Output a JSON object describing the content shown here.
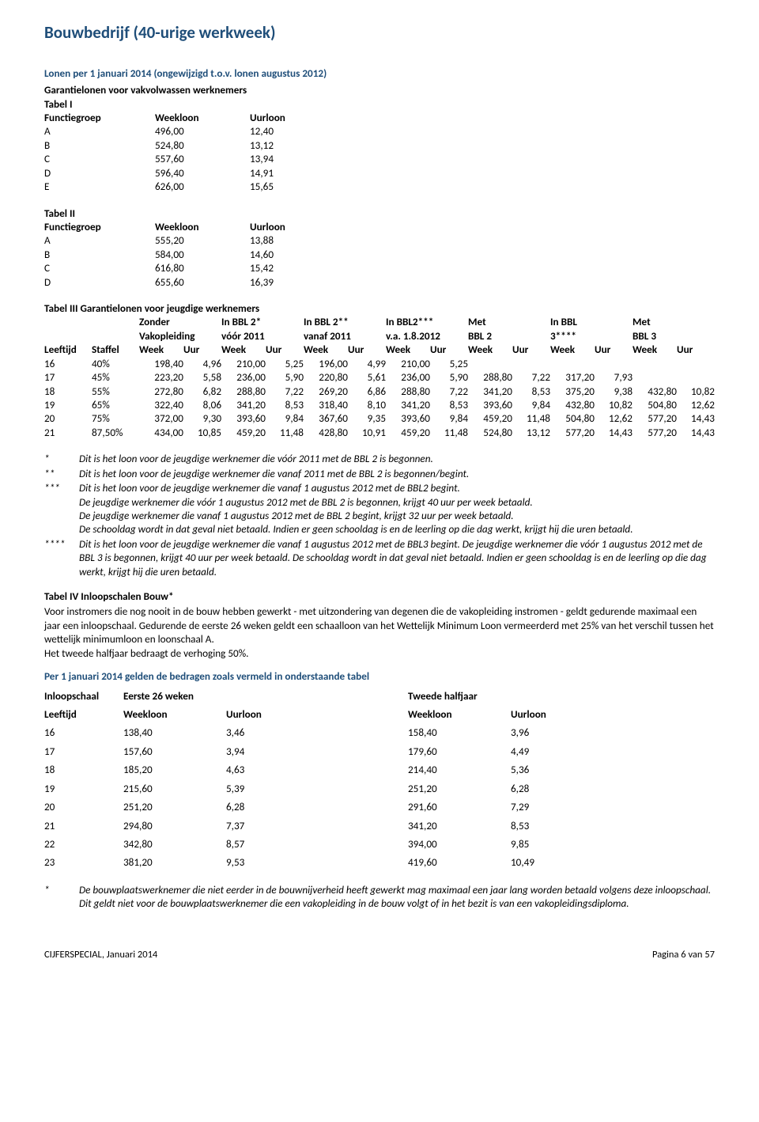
{
  "title": "Bouwbedrijf (40-urige werkweek)",
  "subtitle": "Lonen per 1 januari 2014 (ongewijzigd t.o.v. lonen augustus 2012)",
  "tabel1": {
    "heading": "Garantielonen voor vakvolwassen werknemers",
    "name": "Tabel I",
    "cols": [
      "Functiegroep",
      "Weekloon",
      "Uurloon"
    ],
    "rows": [
      [
        "A",
        "496,00",
        "12,40"
      ],
      [
        "B",
        "524,80",
        "13,12"
      ],
      [
        "C",
        "557,60",
        "13,94"
      ],
      [
        "D",
        "596,40",
        "14,91"
      ],
      [
        "E",
        "626,00",
        "15,65"
      ]
    ]
  },
  "tabel2": {
    "name": "Tabel II",
    "cols": [
      "Functiegroep",
      "Weekloon",
      "Uurloon"
    ],
    "rows": [
      [
        "A",
        "555,20",
        "13,88"
      ],
      [
        "B",
        "584,00",
        "14,60"
      ],
      [
        "C",
        "616,80",
        "15,42"
      ],
      [
        "D",
        "655,60",
        "16,39"
      ]
    ]
  },
  "tabel3": {
    "name": "Tabel III  Garantielonen voor jeugdige werknemers",
    "groupheaders": [
      "",
      "",
      "Zonder",
      "",
      "In BBL 2*",
      "",
      "In BBL 2**",
      "",
      "In BBL2***",
      "",
      "Met",
      "",
      "In BBL",
      "",
      "Met",
      ""
    ],
    "groupheaders2": [
      "",
      "",
      "Vakopleiding",
      "",
      "vóór 2011",
      "",
      "vanaf 2011",
      "",
      "v.a. 1.8.2012",
      "",
      "BBL 2",
      "",
      "3****",
      "",
      "BBL 3",
      ""
    ],
    "subheaders": [
      "Leeftijd",
      "Staffel",
      "Week",
      "Uur",
      "Week",
      "Uur",
      "Week",
      "Uur",
      "Week",
      "Uur",
      "Week",
      "Uur",
      "Week",
      "Uur",
      "Week",
      "Uur"
    ],
    "rows": [
      [
        "16",
        "40%",
        "198,40",
        "4,96",
        "210,00",
        "5,25",
        "196,00",
        "4,99",
        "210,00",
        "5,25",
        "",
        "",
        "",
        "",
        "",
        ""
      ],
      [
        "17",
        "45%",
        "223,20",
        "5,58",
        "236,00",
        "5,90",
        "220,80",
        "5,61",
        "236,00",
        "5,90",
        "288,80",
        "7,22",
        "317,20",
        "7,93",
        "",
        ""
      ],
      [
        "18",
        "55%",
        "272,80",
        "6,82",
        "288,80",
        "7,22",
        "269,20",
        "6,86",
        "288,80",
        "7,22",
        "341,20",
        "8,53",
        "375,20",
        "9,38",
        "432,80",
        "10,82"
      ],
      [
        "19",
        "65%",
        "322,40",
        "8,06",
        "341,20",
        "8,53",
        "318,40",
        "8,10",
        "341,20",
        "8,53",
        "393,60",
        "9,84",
        "432,80",
        "10,82",
        "504,80",
        "12,62"
      ],
      [
        "20",
        "75%",
        "372,00",
        "9,30",
        "393,60",
        "9,84",
        "367,60",
        "9,35",
        "393,60",
        "9,84",
        "459,20",
        "11,48",
        "504,80",
        "12,62",
        "577,20",
        "14,43"
      ],
      [
        "21",
        "87,50%",
        "434,00",
        "10,85",
        "459,20",
        "11,48",
        "428,80",
        "10,91",
        "459,20",
        "11,48",
        "524,80",
        "13,12",
        "577,20",
        "14,43",
        "577,20",
        "14,43"
      ]
    ]
  },
  "notes": [
    [
      "*",
      "Dit is het loon voor de jeugdige werknemer die vóór 2011 met de BBL 2 is begonnen."
    ],
    [
      "**",
      "Dit is het loon voor de jeugdige werknemer die vanaf 2011 met de BBL 2 is begonnen/begint."
    ],
    [
      "***",
      "Dit is het loon voor de jeugdige werknemer die vanaf 1 augustus 2012 met de BBL2 begint.\nDe jeugdige werknemer die vóór 1 augustus 2012 met de BBL 2 is begonnen, krijgt 40 uur per week betaald.\nDe jeugdige werknemer die vanaf 1 augustus 2012 met de BBL 2 begint, krijgt 32 uur per week betaald.\nDe schooldag wordt in dat geval niet betaald. Indien er geen schooldag is en de leerling op die dag werkt, krijgt hij die uren betaald."
    ],
    [
      "****",
      "Dit is het loon voor de jeugdige werknemer die vanaf 1 augustus 2012 met de BBL3 begint. De jeugdige werknemer die vóór 1 augustus 2012 met de BBL 3 is begonnen, krijgt 40 uur per week betaald. De schooldag wordt in dat geval niet betaald. Indien er geen schooldag is en de leerling op die dag werkt, krijgt hij die uren betaald."
    ]
  ],
  "tabel4": {
    "name": "Tabel IV   Inloopschalen Bouw*",
    "intro": "Voor instromers die nog nooit in de bouw hebben gewerkt - met uitzondering van degenen die de vakopleiding instromen - geldt gedurende maximaal een jaar een inloopschaal. Gedurende de eerste 26 weken geldt een schaalloon van het Wettelijk Minimum Loon vermeerderd met 25% van het verschil tussen het wettelijk minimumloon en loonschaal A.\nHet tweede halfjaar bedraagt de verhoging 50%.",
    "sub": "Per 1 januari 2014 gelden de bedragen zoals vermeld in onderstaande tabel",
    "h1": [
      "Inloopschaal",
      "Eerste 26 weken",
      "",
      "Tweede halfjaar",
      ""
    ],
    "h2": [
      "Leeftijd",
      "Weekloon",
      "Uurloon",
      "Weekloon",
      "Uurloon"
    ],
    "rows": [
      [
        "16",
        "138,40",
        "3,46",
        "158,40",
        "3,96"
      ],
      [
        "17",
        "157,60",
        "3,94",
        "179,60",
        "4,49"
      ],
      [
        "18",
        "185,20",
        "4,63",
        "214,40",
        "5,36"
      ],
      [
        "19",
        "215,60",
        "5,39",
        "251,20",
        "6,28"
      ],
      [
        "20",
        "251,20",
        "6,28",
        "291,60",
        "7,29"
      ],
      [
        "21",
        "294,80",
        "7,37",
        "341,20",
        "8,53"
      ],
      [
        "22",
        "342,80",
        "8,57",
        "394,00",
        "9,85"
      ],
      [
        "23",
        "381,20",
        "9,53",
        "419,60",
        "10,49"
      ]
    ]
  },
  "footnote4": [
    "*",
    "De bouwplaatswerknemer die niet eerder in de bouwnijverheid heeft gewerkt mag maximaal een jaar lang worden betaald volgens deze inloopschaal. Dit geldt niet voor de bouwplaatswerknemer die een vakopleiding in de bouw volgt of in het bezit is van een vakopleidingsdiploma."
  ],
  "footer": {
    "left": "CIJFERSPECIAL, Januari 2014",
    "right": "Pagina 6 van 57"
  }
}
